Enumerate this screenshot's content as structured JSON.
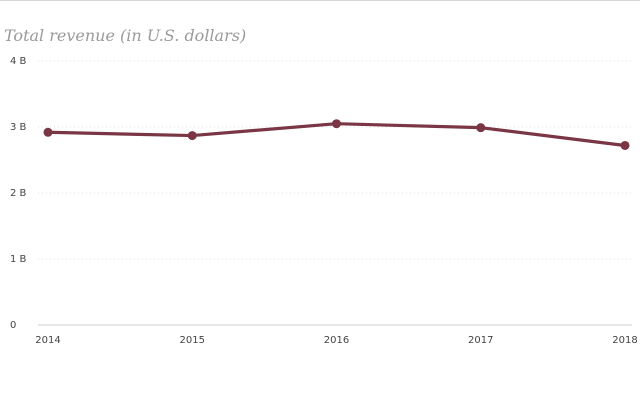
{
  "chart_data": {
    "type": "line",
    "title": "Total revenue (in U.S. dollars)",
    "categories": [
      "2014",
      "2015",
      "2016",
      "2017",
      "2018"
    ],
    "series": [
      {
        "values": [
          2.92,
          2.87,
          3.05,
          2.99,
          2.72
        ]
      }
    ],
    "ylim": [
      0,
      4
    ],
    "y_ticks": [
      {
        "value": 0,
        "label": "0"
      },
      {
        "value": 1,
        "label": "1 B"
      },
      {
        "value": 2,
        "label": "2 B"
      },
      {
        "value": 3,
        "label": "3 B"
      },
      {
        "value": 4,
        "label": "4 B"
      }
    ],
    "value_unit": "billion U.S. dollars",
    "grid": true,
    "colors": {
      "line": "#7a3645",
      "grid": "#dcdcdc",
      "axis": "#cfcfcf",
      "title": "#9a9a9a"
    }
  }
}
